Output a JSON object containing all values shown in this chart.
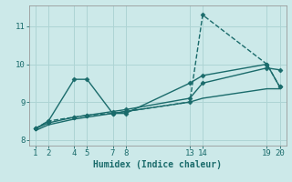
{
  "xlabel": "Humidex (Indice chaleur)",
  "bg_color": "#cce9e9",
  "grid_color": "#aed4d4",
  "line_color": "#1a6b6b",
  "xticks": [
    1,
    2,
    4,
    5,
    7,
    8,
    13,
    14,
    19,
    20
  ],
  "yticks": [
    8,
    9,
    10,
    11
  ],
  "xlim": [
    0.5,
    20.5
  ],
  "ylim": [
    7.85,
    11.55
  ],
  "series": [
    {
      "x": [
        1,
        2,
        4,
        5,
        7,
        8,
        13,
        14,
        19,
        20
      ],
      "y": [
        8.3,
        8.5,
        9.6,
        9.6,
        8.7,
        8.7,
        9.5,
        9.7,
        10.0,
        9.4
      ],
      "style": "-",
      "marker": "D",
      "markersize": 2.5,
      "linewidth": 1.0
    },
    {
      "x": [
        1,
        2,
        4,
        5,
        7,
        8,
        13,
        14,
        19,
        20
      ],
      "y": [
        8.3,
        8.5,
        8.6,
        8.65,
        8.7,
        8.75,
        9.0,
        11.3,
        10.0,
        9.4
      ],
      "style": "--",
      "marker": "D",
      "markersize": 2.5,
      "linewidth": 1.0
    },
    {
      "x": [
        1,
        2,
        4,
        5,
        7,
        8,
        13,
        14,
        19,
        20
      ],
      "y": [
        8.3,
        8.45,
        8.6,
        8.65,
        8.75,
        8.8,
        9.1,
        9.5,
        9.9,
        9.85
      ],
      "style": "-",
      "marker": "D",
      "markersize": 2.5,
      "linewidth": 1.0
    },
    {
      "x": [
        1,
        2,
        4,
        5,
        7,
        8,
        13,
        14,
        19,
        20
      ],
      "y": [
        8.25,
        8.4,
        8.55,
        8.6,
        8.7,
        8.75,
        9.0,
        9.1,
        9.35,
        9.35
      ],
      "style": "-",
      "marker": null,
      "markersize": 0,
      "linewidth": 1.0
    }
  ]
}
